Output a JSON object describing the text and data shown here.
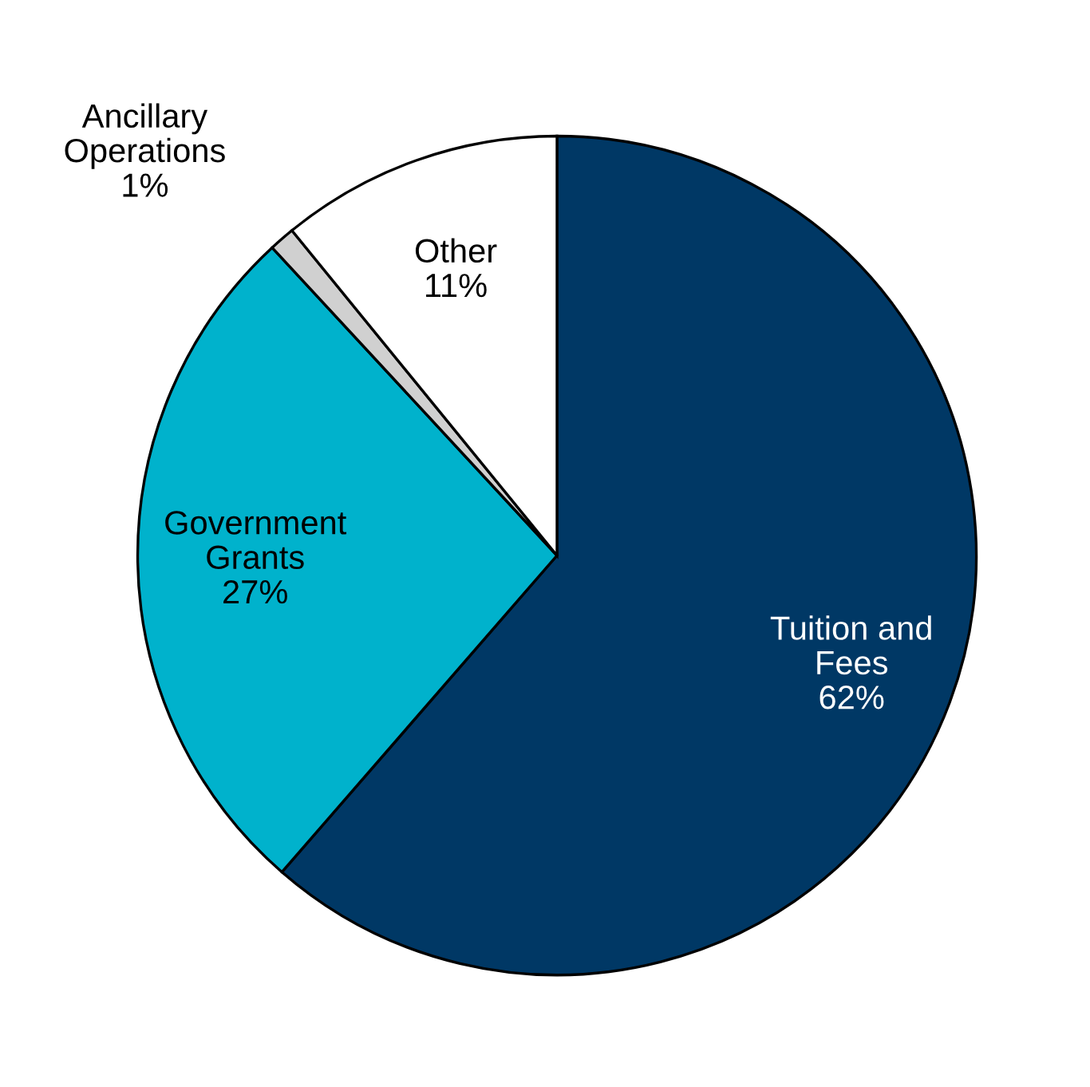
{
  "chart_data": {
    "type": "pie",
    "categories": [
      "Tuition and\nFees",
      "Government\nGrants",
      "Ancillary\nOperations",
      "Other"
    ],
    "values": [
      62,
      27,
      1,
      11
    ],
    "value_labels": [
      "62%",
      "27%",
      "1%",
      "11%"
    ],
    "colors": [
      "#003865",
      "#00b2cc",
      "#d0d0d0",
      "#ffffff"
    ],
    "legend": false
  }
}
